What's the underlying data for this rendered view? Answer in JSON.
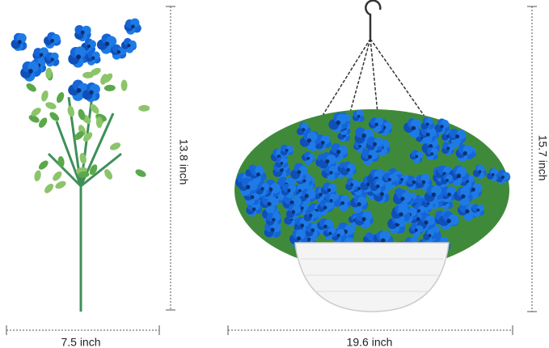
{
  "dimensions": {
    "left_height": "13.8 inch",
    "left_width": "7.5 inch",
    "right_width": "19.6 inch",
    "right_height": "15.7 inch"
  }
}
